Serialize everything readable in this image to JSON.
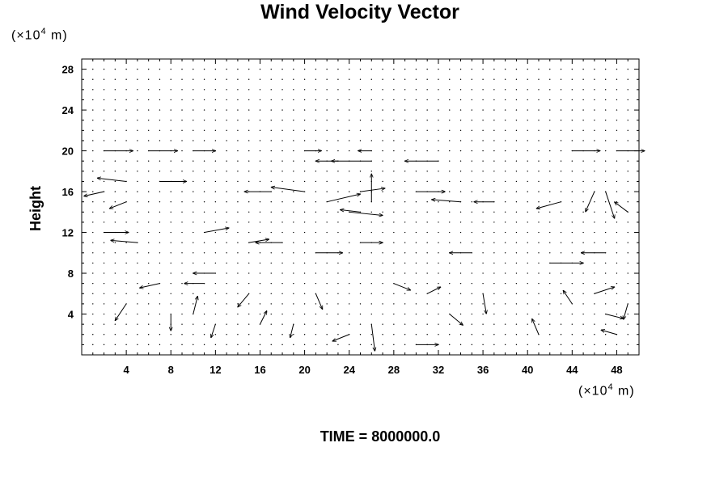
{
  "chart_data": {
    "type": "vector_field",
    "title": "Wind Velocity Vector",
    "ylabel": "Height",
    "footer": "TIME = 8000000.0",
    "x_unit": {
      "prefix": "(×10",
      "exp": "4",
      "suffix": " m)"
    },
    "y_unit": {
      "prefix": "(×10",
      "exp": "4",
      "suffix": " m)"
    },
    "xlim": [
      0,
      50
    ],
    "ylim": [
      0,
      29
    ],
    "x_ticks": [
      4,
      8,
      12,
      16,
      20,
      24,
      28,
      32,
      36,
      40,
      44,
      48
    ],
    "y_ticks": [
      4,
      8,
      12,
      16,
      20,
      24,
      28
    ],
    "grid": false,
    "vectors": [
      {
        "x": 2,
        "y": 20,
        "u": 2.6,
        "v": 0
      },
      {
        "x": 6,
        "y": 20,
        "u": 2.6,
        "v": 0
      },
      {
        "x": 10,
        "y": 20,
        "u": 2.0,
        "v": 0
      },
      {
        "x": 20,
        "y": 20,
        "u": 1.5,
        "v": 0
      },
      {
        "x": 26,
        "y": 20,
        "u": -1.2,
        "v": 0
      },
      {
        "x": 44,
        "y": 20,
        "u": 2.5,
        "v": 0
      },
      {
        "x": 48,
        "y": 20,
        "u": 2.5,
        "v": 0
      },
      {
        "x": 26,
        "y": 19,
        "u": -3.6,
        "v": 0
      },
      {
        "x": 32,
        "y": 19,
        "u": -3.0,
        "v": 0
      },
      {
        "x": 23,
        "y": 19,
        "u": -2.0,
        "v": 0
      },
      {
        "x": 4,
        "y": 17,
        "u": -2.6,
        "v": 0.3
      },
      {
        "x": 7,
        "y": 17,
        "u": 2.4,
        "v": 0
      },
      {
        "x": 2,
        "y": 16,
        "u": -1.8,
        "v": -0.4
      },
      {
        "x": 4,
        "y": 15,
        "u": -1.5,
        "v": -0.6
      },
      {
        "x": 20,
        "y": 16,
        "u": -3.0,
        "v": 0.4
      },
      {
        "x": 17,
        "y": 16,
        "u": -2.4,
        "v": 0
      },
      {
        "x": 22,
        "y": 15,
        "u": 3.0,
        "v": 0.7
      },
      {
        "x": 25,
        "y": 16,
        "u": 2.2,
        "v": 0.3
      },
      {
        "x": 24,
        "y": 14,
        "u": 3.0,
        "v": -0.3
      },
      {
        "x": 25,
        "y": 14,
        "u": -1.8,
        "v": 0.2
      },
      {
        "x": 26,
        "y": 15,
        "u": 0,
        "v": 2.5
      },
      {
        "x": 30,
        "y": 16,
        "u": 2.6,
        "v": 0
      },
      {
        "x": 34,
        "y": 15,
        "u": -2.6,
        "v": 0.2
      },
      {
        "x": 37,
        "y": 15,
        "u": -1.8,
        "v": 0
      },
      {
        "x": 43,
        "y": 15,
        "u": -2.2,
        "v": -0.6
      },
      {
        "x": 46,
        "y": 16,
        "u": -0.8,
        "v": -1.8
      },
      {
        "x": 47,
        "y": 16,
        "u": 0.8,
        "v": -2.4
      },
      {
        "x": 49,
        "y": 14,
        "u": -1.2,
        "v": 0.9
      },
      {
        "x": 2,
        "y": 12,
        "u": 2.2,
        "v": 0
      },
      {
        "x": 5,
        "y": 11,
        "u": -2.4,
        "v": 0.2
      },
      {
        "x": 11,
        "y": 12,
        "u": 2.2,
        "v": 0.4
      },
      {
        "x": 15,
        "y": 11,
        "u": 1.8,
        "v": 0.3
      },
      {
        "x": 18,
        "y": 11,
        "u": -2.4,
        "v": 0
      },
      {
        "x": 21,
        "y": 10,
        "u": 2.4,
        "v": 0
      },
      {
        "x": 25,
        "y": 11,
        "u": 2.0,
        "v": 0
      },
      {
        "x": 35,
        "y": 10,
        "u": -2.0,
        "v": 0
      },
      {
        "x": 42,
        "y": 9,
        "u": 3.0,
        "v": 0
      },
      {
        "x": 47,
        "y": 10,
        "u": -2.2,
        "v": 0
      },
      {
        "x": 12,
        "y": 8,
        "u": -2.0,
        "v": 0
      },
      {
        "x": 7,
        "y": 7,
        "u": -1.8,
        "v": -0.4
      },
      {
        "x": 11,
        "y": 7,
        "u": -1.8,
        "v": 0
      },
      {
        "x": 4,
        "y": 5,
        "u": -1.0,
        "v": -1.5
      },
      {
        "x": 8,
        "y": 4,
        "u": 0,
        "v": -1.5
      },
      {
        "x": 10,
        "y": 4,
        "u": 0.4,
        "v": 1.6
      },
      {
        "x": 12,
        "y": 3,
        "u": -0.4,
        "v": -1.2
      },
      {
        "x": 16,
        "y": 3,
        "u": 0.6,
        "v": 1.2
      },
      {
        "x": 19,
        "y": 3,
        "u": -0.3,
        "v": -1.2
      },
      {
        "x": 24,
        "y": 2,
        "u": -1.5,
        "v": -0.6
      },
      {
        "x": 26,
        "y": 3,
        "u": 0.3,
        "v": -2.4
      },
      {
        "x": 30,
        "y": 1,
        "u": 2.0,
        "v": 0
      },
      {
        "x": 33,
        "y": 4,
        "u": 1.2,
        "v": -1.0
      },
      {
        "x": 36,
        "y": 6,
        "u": 0.3,
        "v": -1.8
      },
      {
        "x": 41,
        "y": 2,
        "u": -0.6,
        "v": 1.4
      },
      {
        "x": 44,
        "y": 5,
        "u": -0.8,
        "v": 1.2
      },
      {
        "x": 46,
        "y": 6,
        "u": 1.8,
        "v": 0.6
      },
      {
        "x": 47,
        "y": 4,
        "u": 1.6,
        "v": -0.4
      },
      {
        "x": 48,
        "y": 2,
        "u": -1.4,
        "v": 0.4
      },
      {
        "x": 49,
        "y": 5,
        "u": -0.4,
        "v": -1.4
      },
      {
        "x": 15,
        "y": 6,
        "u": -1.0,
        "v": -1.2
      },
      {
        "x": 21,
        "y": 6,
        "u": 0.6,
        "v": -1.4
      },
      {
        "x": 28,
        "y": 7,
        "u": 1.5,
        "v": -0.6
      },
      {
        "x": 31,
        "y": 6,
        "u": 1.2,
        "v": 0.6
      }
    ]
  }
}
